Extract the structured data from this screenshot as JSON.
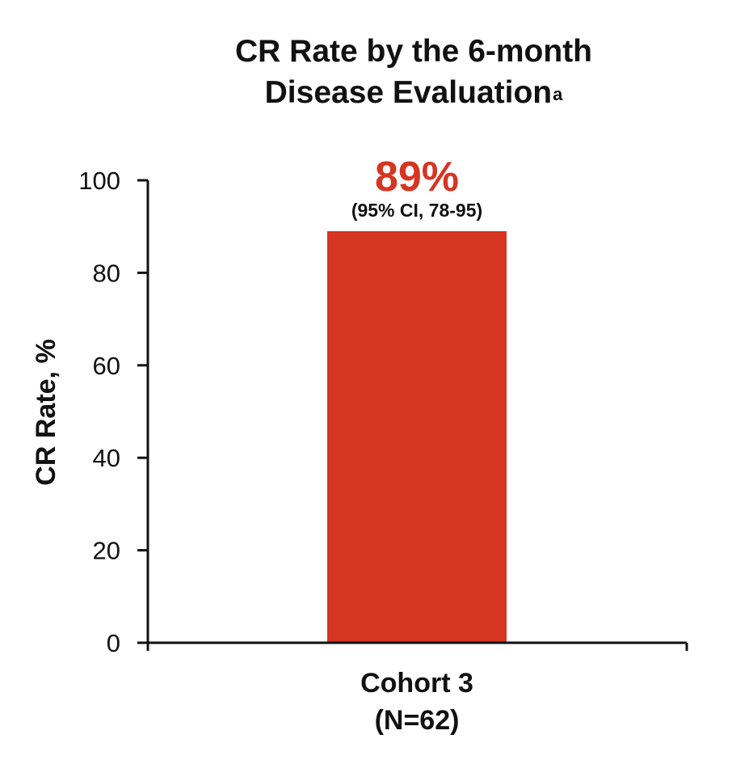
{
  "chart_data": {
    "type": "bar",
    "title_line1": "CR Rate by the 6-month",
    "title_line2": "Disease Evaluation",
    "title_superscript": "a",
    "ylabel": "CR Rate, %",
    "ylim": [
      0,
      100
    ],
    "yticks": [
      "0",
      "20",
      "40",
      "60",
      "80",
      "100"
    ],
    "categories": [
      {
        "line1": "Cohort 3",
        "line2": "(N=62)"
      }
    ],
    "values": [
      89
    ],
    "data_labels": [
      {
        "value_label": "89%",
        "ci_label": "(95% CI, 78-95)"
      }
    ],
    "grid": false,
    "colors": {
      "bar": "#d63522",
      "value_label": "#d63522",
      "axis": "#111111",
      "text": "#111111"
    }
  }
}
